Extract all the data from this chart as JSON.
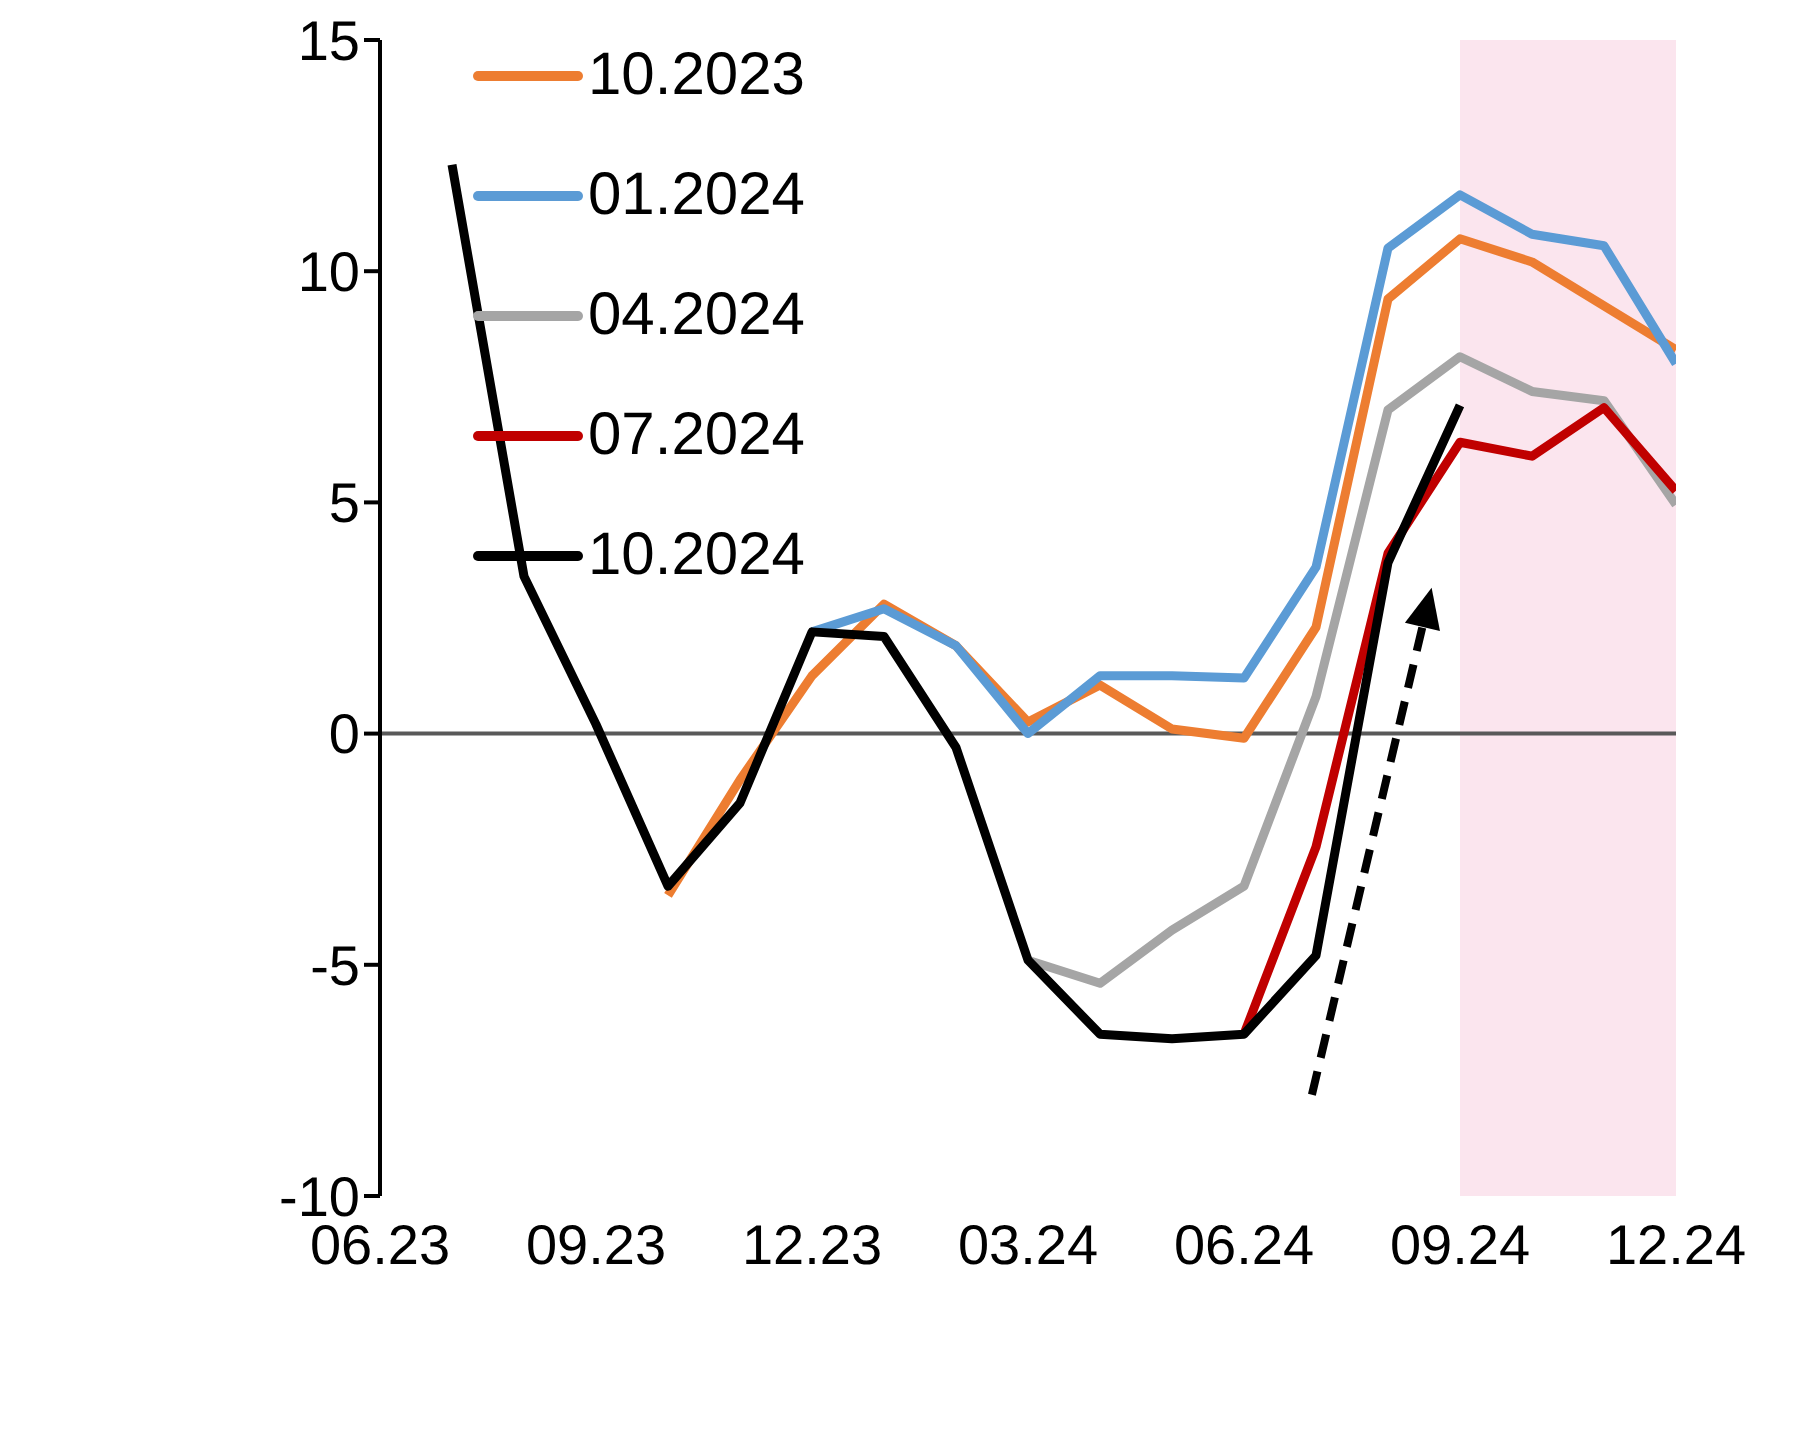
{
  "chart_data": {
    "type": "line",
    "x": [
      "2023-07",
      "2023-08",
      "2023-09",
      "2023-10",
      "2023-11",
      "2023-12",
      "2024-01",
      "2024-02",
      "2024-03",
      "2024-04",
      "2024-05",
      "2024-06",
      "2024-07",
      "2024-08",
      "2024-09",
      "2024-10",
      "2024-11",
      "2024-12"
    ],
    "series": [
      {
        "name": "10.2023",
        "color": "#ed7d31",
        "values": [
          null,
          null,
          null,
          -3.5,
          -1.0,
          1.25,
          2.8,
          1.9,
          0.25,
          1.05,
          0.1,
          -0.1,
          2.3,
          9.4,
          10.7,
          10.2,
          9.25,
          8.3
        ]
      },
      {
        "name": "01.2024",
        "color": "#5b9bd5",
        "values": [
          null,
          null,
          null,
          null,
          null,
          2.2,
          2.7,
          1.9,
          0.0,
          1.25,
          1.25,
          1.2,
          3.6,
          10.5,
          11.65,
          10.8,
          10.55,
          8.0
        ]
      },
      {
        "name": "04.2024",
        "color": "#a5a5a5",
        "values": [
          null,
          null,
          null,
          null,
          null,
          null,
          null,
          null,
          -4.9,
          -5.4,
          -4.25,
          -3.3,
          0.8,
          7.0,
          8.15,
          7.4,
          7.2,
          4.95
        ]
      },
      {
        "name": "07.2024",
        "color": "#c00000",
        "values": [
          null,
          null,
          null,
          null,
          null,
          null,
          null,
          null,
          null,
          null,
          null,
          -6.5,
          -2.45,
          3.9,
          6.3,
          6.0,
          7.05,
          5.25
        ]
      },
      {
        "name": "10.2024",
        "color": "#000000",
        "values": [
          12.3,
          3.4,
          0.2,
          -3.3,
          -1.5,
          2.2,
          2.1,
          -0.3,
          -4.9,
          -6.5,
          -6.6,
          -6.5,
          -4.8,
          3.7,
          7.1,
          null,
          null,
          null
        ]
      }
    ],
    "xlim": [
      "2023-06",
      "2024-12"
    ],
    "xticks": [
      {
        "value": "2023-06",
        "label": "06.23"
      },
      {
        "value": "2023-09",
        "label": "09.23"
      },
      {
        "value": "2023-12",
        "label": "12.23"
      },
      {
        "value": "2024-03",
        "label": "03.24"
      },
      {
        "value": "2024-06",
        "label": "06.24"
      },
      {
        "value": "2024-09",
        "label": "09.24"
      },
      {
        "value": "2024-12",
        "label": "12.24"
      }
    ],
    "ylim": [
      -10,
      15
    ],
    "yticks": [
      -10,
      -5,
      0,
      5,
      10,
      15
    ],
    "ref_lines": [
      {
        "axis": "y",
        "value": 0,
        "color": "#595959"
      }
    ],
    "bands": [
      {
        "axis": "x",
        "from": "2024-09",
        "to": "2024-12",
        "color": "#fbe5ee"
      }
    ],
    "legend": "top left",
    "line_style": "solid"
  }
}
